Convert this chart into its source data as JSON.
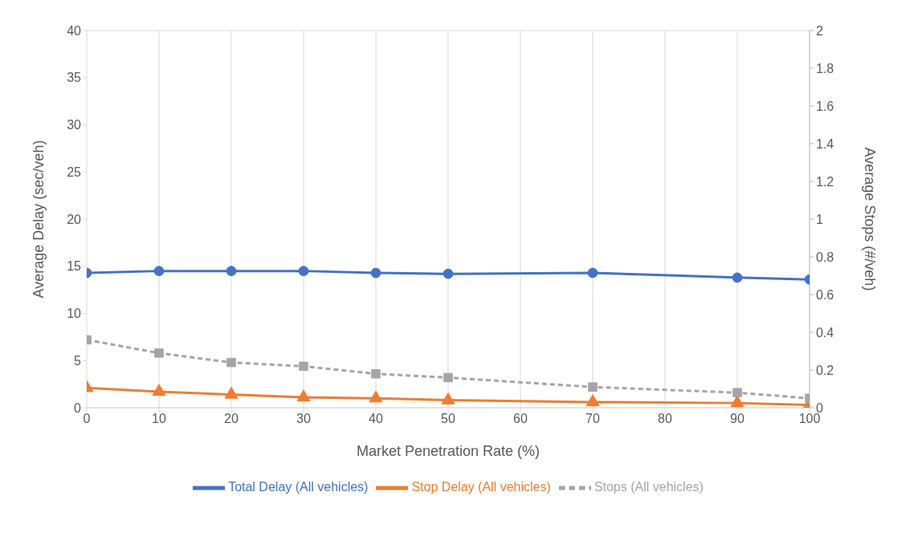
{
  "chart_data": {
    "type": "line",
    "xlabel": "Market Penetration Rate (%)",
    "ylabel": "Average Delay (sec/veh)",
    "y2label": "Average Stops (#/veh)",
    "x": [
      0,
      10,
      20,
      30,
      40,
      50,
      70,
      90,
      100
    ],
    "xlim": [
      0,
      100
    ],
    "xticks": [
      0,
      10,
      20,
      30,
      40,
      50,
      60,
      70,
      80,
      90,
      100
    ],
    "ylim": [
      0,
      40
    ],
    "yticks": [
      0,
      5,
      10,
      15,
      20,
      25,
      30,
      35,
      40
    ],
    "y2lim": [
      0,
      2
    ],
    "y2ticks": [
      0,
      0.2,
      0.4,
      0.6,
      0.8,
      1,
      1.2,
      1.4,
      1.6,
      1.8,
      2
    ],
    "grid": true,
    "legend": "bottom",
    "series": [
      {
        "name": "Total Delay (All vehicles)",
        "color": "#4472c4",
        "marker": "circle",
        "line_style": "solid",
        "values": [
          14.3,
          14.5,
          14.5,
          14.5,
          14.3,
          14.2,
          14.3,
          13.8,
          13.6
        ]
      },
      {
        "name": "Stop Delay (All vehicles)",
        "color": "#ed7d31",
        "marker": "triangle",
        "line_style": "solid",
        "values": [
          2.1,
          1.7,
          1.4,
          1.1,
          1.0,
          0.8,
          0.6,
          0.5,
          0.3
        ]
      },
      {
        "name": "Stops (All vehicles)",
        "color": "#a5a5a5",
        "marker": "square",
        "line_style": "dashed",
        "axis": "y2",
        "values": [
          0.36,
          0.29,
          0.24,
          0.22,
          0.18,
          0.16,
          0.11,
          0.08,
          0.05
        ]
      }
    ]
  }
}
